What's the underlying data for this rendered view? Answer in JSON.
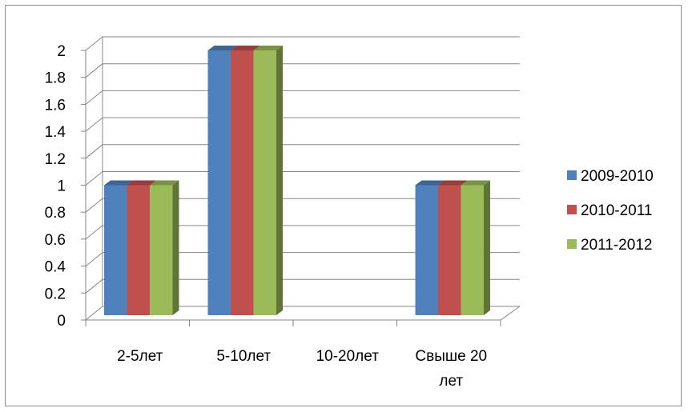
{
  "chart_data": {
    "type": "bar",
    "categories": [
      "2-5лет",
      "5-10лет",
      "10-20лет",
      "Свыше 20 лет"
    ],
    "category_lines": [
      [
        "2-5лет"
      ],
      [
        "5-10лет"
      ],
      [
        "10-20лет"
      ],
      [
        "Свыше 20",
        "лет"
      ]
    ],
    "series": [
      {
        "name": "2009-2010",
        "values": [
          1,
          2,
          0,
          1
        ],
        "color": "#4f81bd"
      },
      {
        "name": "2010-2011",
        "values": [
          1,
          2,
          0,
          1
        ],
        "color": "#c0504d"
      },
      {
        "name": "2011-2012",
        "values": [
          1,
          2,
          0,
          1
        ],
        "color": "#9bbb59"
      }
    ],
    "yticks": [
      "0",
      "0.2",
      "0.4",
      "0.6",
      "0.8",
      "1",
      "1.2",
      "1.4",
      "1.6",
      "1.8",
      "2"
    ],
    "ylim": [
      0,
      2
    ],
    "grid": true,
    "legend_position": "right",
    "style": "3d-clustered-column"
  }
}
